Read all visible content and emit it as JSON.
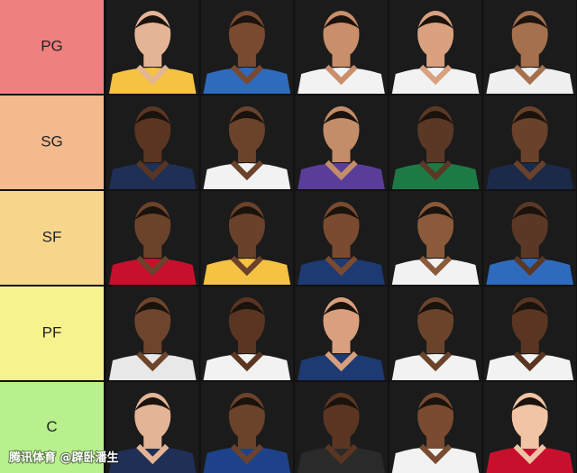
{
  "tiers": [
    "PG",
    "SG",
    "SF",
    "PF",
    "C"
  ],
  "watermark": "腾讯体育 @辟卧潘生"
}
